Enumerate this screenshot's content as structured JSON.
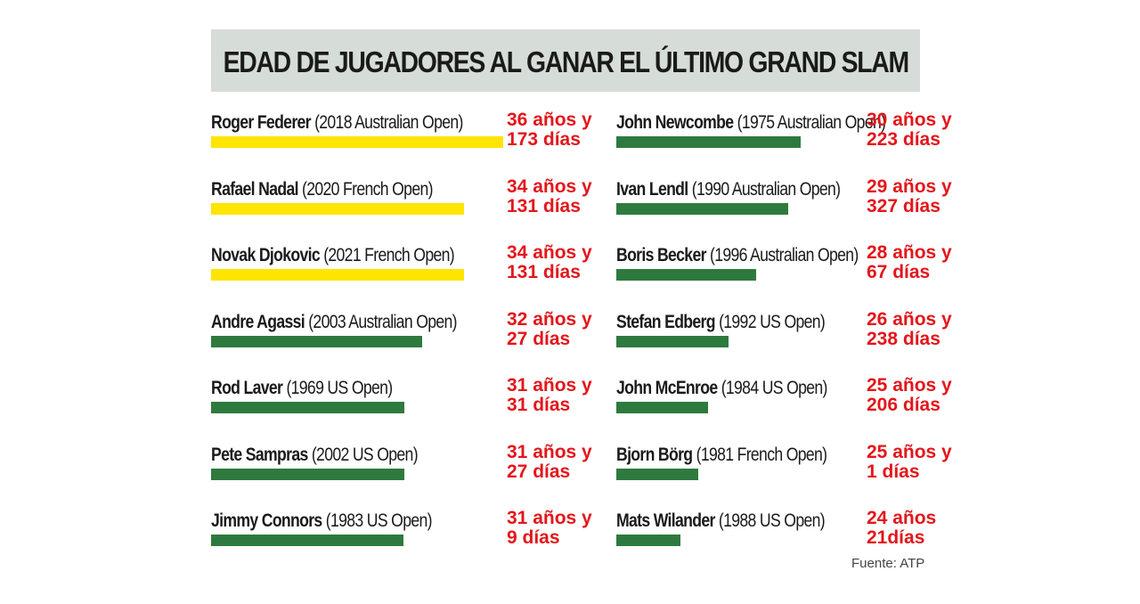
{
  "chart_data": {
    "type": "bar",
    "title": "EDAD DE JUGADORES AL GANAR EL ÚLTIMO GRAND SLAM",
    "colors": {
      "active": "#ffe500",
      "retired": "#2e7a3e",
      "age_text": "#e3161b",
      "title_band": "#d6dcd8"
    },
    "series": [
      {
        "name": "Roger Federer",
        "event": "(2018 Australian Open)",
        "age_line1": "36 años y",
        "age_line2": "173 días",
        "years": 36,
        "days": 173,
        "active": true
      },
      {
        "name": "Rafael Nadal",
        "event": "(2020 French Open)",
        "age_line1": "34 años y",
        "age_line2": "131 días",
        "years": 34,
        "days": 131,
        "active": true
      },
      {
        "name": "Novak Djokovic",
        "event": "(2021 French Open)",
        "age_line1": "34 años y",
        "age_line2": "131 días",
        "years": 34,
        "days": 131,
        "active": true
      },
      {
        "name": "Andre Agassi",
        "event": "(2003 Australian Open)",
        "age_line1": "32 años y",
        "age_line2": "27 días",
        "years": 32,
        "days": 27,
        "active": false
      },
      {
        "name": "Rod Laver",
        "event": "(1969 US Open)",
        "age_line1": "31 años y",
        "age_line2": "31 días",
        "years": 31,
        "days": 31,
        "active": false
      },
      {
        "name": "Pete Sampras",
        "event": "(2002 US Open)",
        "age_line1": "31 años y",
        "age_line2": "27 días",
        "years": 31,
        "days": 27,
        "active": false
      },
      {
        "name": "Jimmy Connors",
        "event": "(1983 US Open)",
        "age_line1": "31 años y",
        "age_line2": "9 días",
        "years": 31,
        "days": 9,
        "active": false
      },
      {
        "name": "John Newcombe",
        "event": "(1975 Australian Open)",
        "age_line1": "30 años y",
        "age_line2": "223 días",
        "years": 30,
        "days": 223,
        "active": false
      },
      {
        "name": "Ivan Lendl",
        "event": "(1990 Australian Open)",
        "age_line1": "29 años y",
        "age_line2": "327 días",
        "years": 29,
        "days": 327,
        "active": false
      },
      {
        "name": "Boris Becker",
        "event": "(1996 Australian Open)",
        "age_line1": "28 años y",
        "age_line2": "67 días",
        "years": 28,
        "days": 67,
        "active": false
      },
      {
        "name": "Stefan Edberg",
        "event": "(1992 US Open)",
        "age_line1": "26 años y",
        "age_line2": "238 días",
        "years": 26,
        "days": 238,
        "active": false
      },
      {
        "name": "John McEnroe",
        "event": "(1984 US Open)",
        "age_line1": "25 años y",
        "age_line2": "206 días",
        "years": 25,
        "days": 206,
        "active": false
      },
      {
        "name": "Bjorn Börg",
        "event": "(1981 French Open)",
        "age_line1": "25 años y",
        "age_line2": "1 días",
        "years": 25,
        "days": 1,
        "active": false
      },
      {
        "name": "Mats Wilander",
        "event": "(1988 US Open)",
        "age_line1": "24 años",
        "age_line2": "21días",
        "years": 24,
        "days": 21,
        "active": false
      }
    ]
  },
  "source": "Fuente: ATP"
}
